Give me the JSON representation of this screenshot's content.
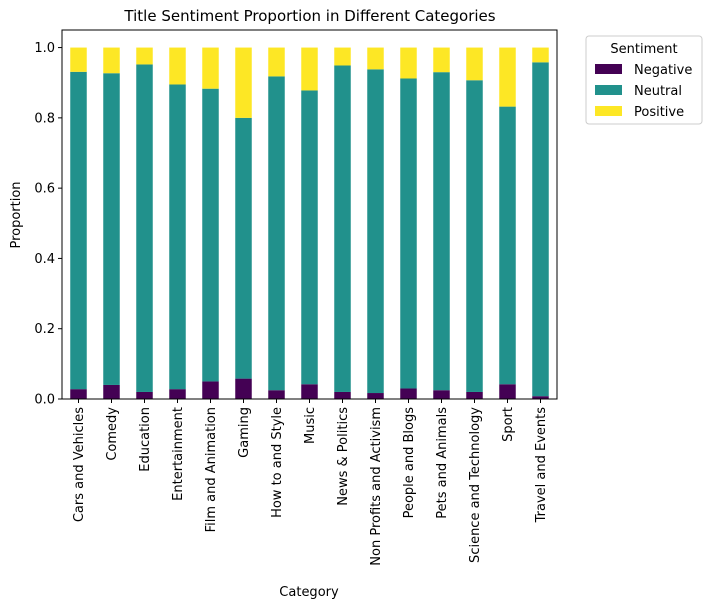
{
  "chart_data": {
    "type": "bar",
    "stacked": true,
    "title": "Title Sentiment Proportion in Different Categories",
    "xlabel": "Category",
    "ylabel": "Proportion",
    "ylim": [
      0,
      1.05
    ],
    "yticks": [
      "0.0",
      "0.2",
      "0.4",
      "0.6",
      "0.8",
      "1.0"
    ],
    "grid": false,
    "legend": {
      "title": "Sentiment",
      "placement": "outside-top-right"
    },
    "categories": [
      "Cars and Vehicles",
      "Comedy",
      "Education",
      "Entertainment",
      "Film and Animation",
      "Gaming",
      "How to and Style",
      "Music",
      "News & Politics",
      "Non Profits and Activism",
      "People and Blogs",
      "Pets and Animals",
      "Science and Technology",
      "Sport",
      "Travel and Events"
    ],
    "series": [
      {
        "name": "Negative",
        "color": "#440154",
        "values": [
          0.028,
          0.04,
          0.02,
          0.028,
          0.05,
          0.058,
          0.025,
          0.042,
          0.02,
          0.017,
          0.03,
          0.025,
          0.02,
          0.042,
          0.008
        ]
      },
      {
        "name": "Neutral",
        "color": "#21918c",
        "values": [
          0.903,
          0.887,
          0.932,
          0.867,
          0.833,
          0.742,
          0.893,
          0.836,
          0.929,
          0.921,
          0.882,
          0.905,
          0.887,
          0.79,
          0.95
        ]
      },
      {
        "name": "Positive",
        "color": "#fde725",
        "values": [
          0.069,
          0.073,
          0.048,
          0.105,
          0.117,
          0.2,
          0.082,
          0.122,
          0.051,
          0.062,
          0.088,
          0.07,
          0.093,
          0.168,
          0.042
        ]
      }
    ]
  }
}
